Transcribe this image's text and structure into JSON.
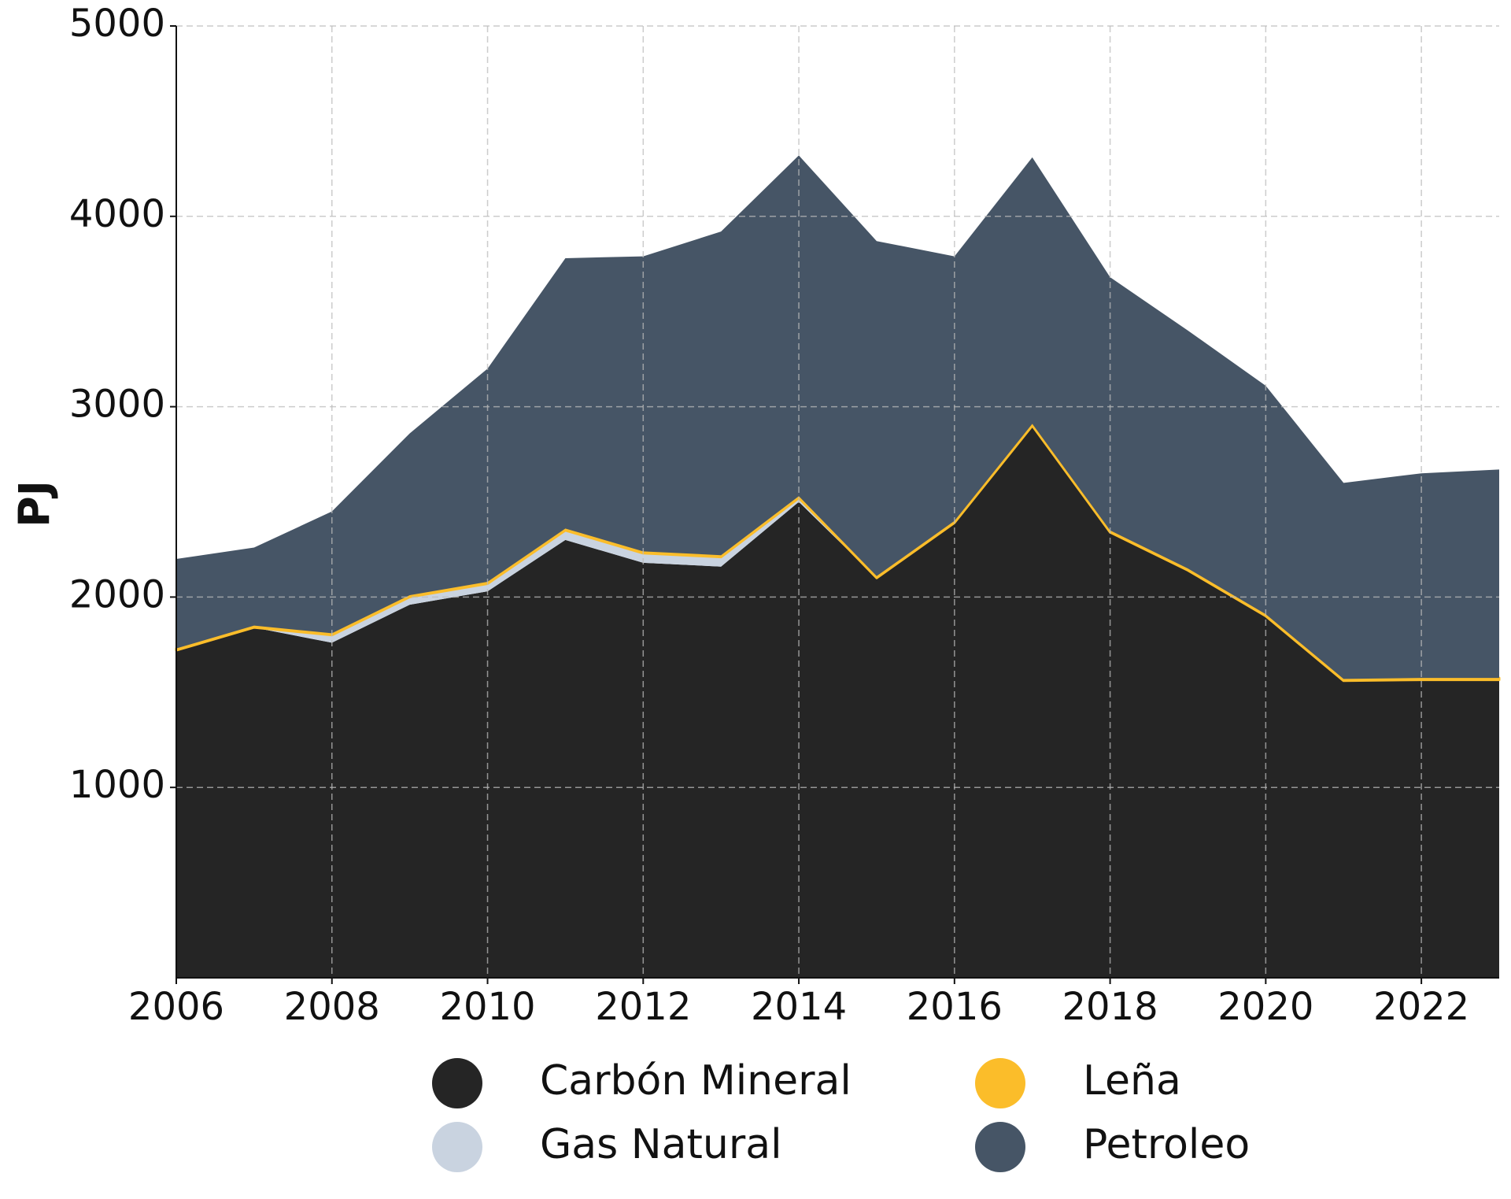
{
  "chart_data": {
    "type": "stacked_area",
    "x": [
      2006,
      2007,
      2008,
      2009,
      2010,
      2011,
      2012,
      2013,
      2014,
      2015,
      2016,
      2017,
      2018,
      2019,
      2020,
      2021,
      2022,
      2023
    ],
    "series": [
      {
        "name": "Carbón Mineral",
        "color": "#252525",
        "values": [
          1720,
          1840,
          1760,
          1960,
          2030,
          2300,
          2180,
          2160,
          2500,
          2100,
          2390,
          2900,
          2340,
          2140,
          1900,
          1560,
          1565,
          1565
        ]
      },
      {
        "name": "Gas Natural",
        "color": "#c9d3e0",
        "values": [
          0,
          0,
          40,
          40,
          40,
          50,
          50,
          50,
          20,
          0,
          0,
          0,
          0,
          0,
          0,
          0,
          0,
          0
        ]
      },
      {
        "name": "Leña",
        "color": "#fbbd2a",
        "values": [
          10,
          10,
          10,
          10,
          10,
          10,
          10,
          10,
          10,
          10,
          10,
          10,
          10,
          10,
          10,
          10,
          10,
          10
        ]
      },
      {
        "name": "Petroleo",
        "color": "#465566",
        "values": [
          470,
          410,
          640,
          850,
          1120,
          1420,
          1550,
          1700,
          1790,
          1760,
          1390,
          1400,
          1330,
          1250,
          1200,
          1030,
          1075,
          1095
        ]
      }
    ],
    "ylabel": "PJ",
    "xlim": [
      2006,
      2023
    ],
    "xticks": [
      2006,
      2008,
      2010,
      2012,
      2014,
      2016,
      2018,
      2020,
      2022
    ],
    "ylim": [
      0,
      5000
    ],
    "yticks": [
      1000,
      2000,
      3000,
      4000,
      5000
    ],
    "grid": true,
    "legend": "bottom"
  }
}
